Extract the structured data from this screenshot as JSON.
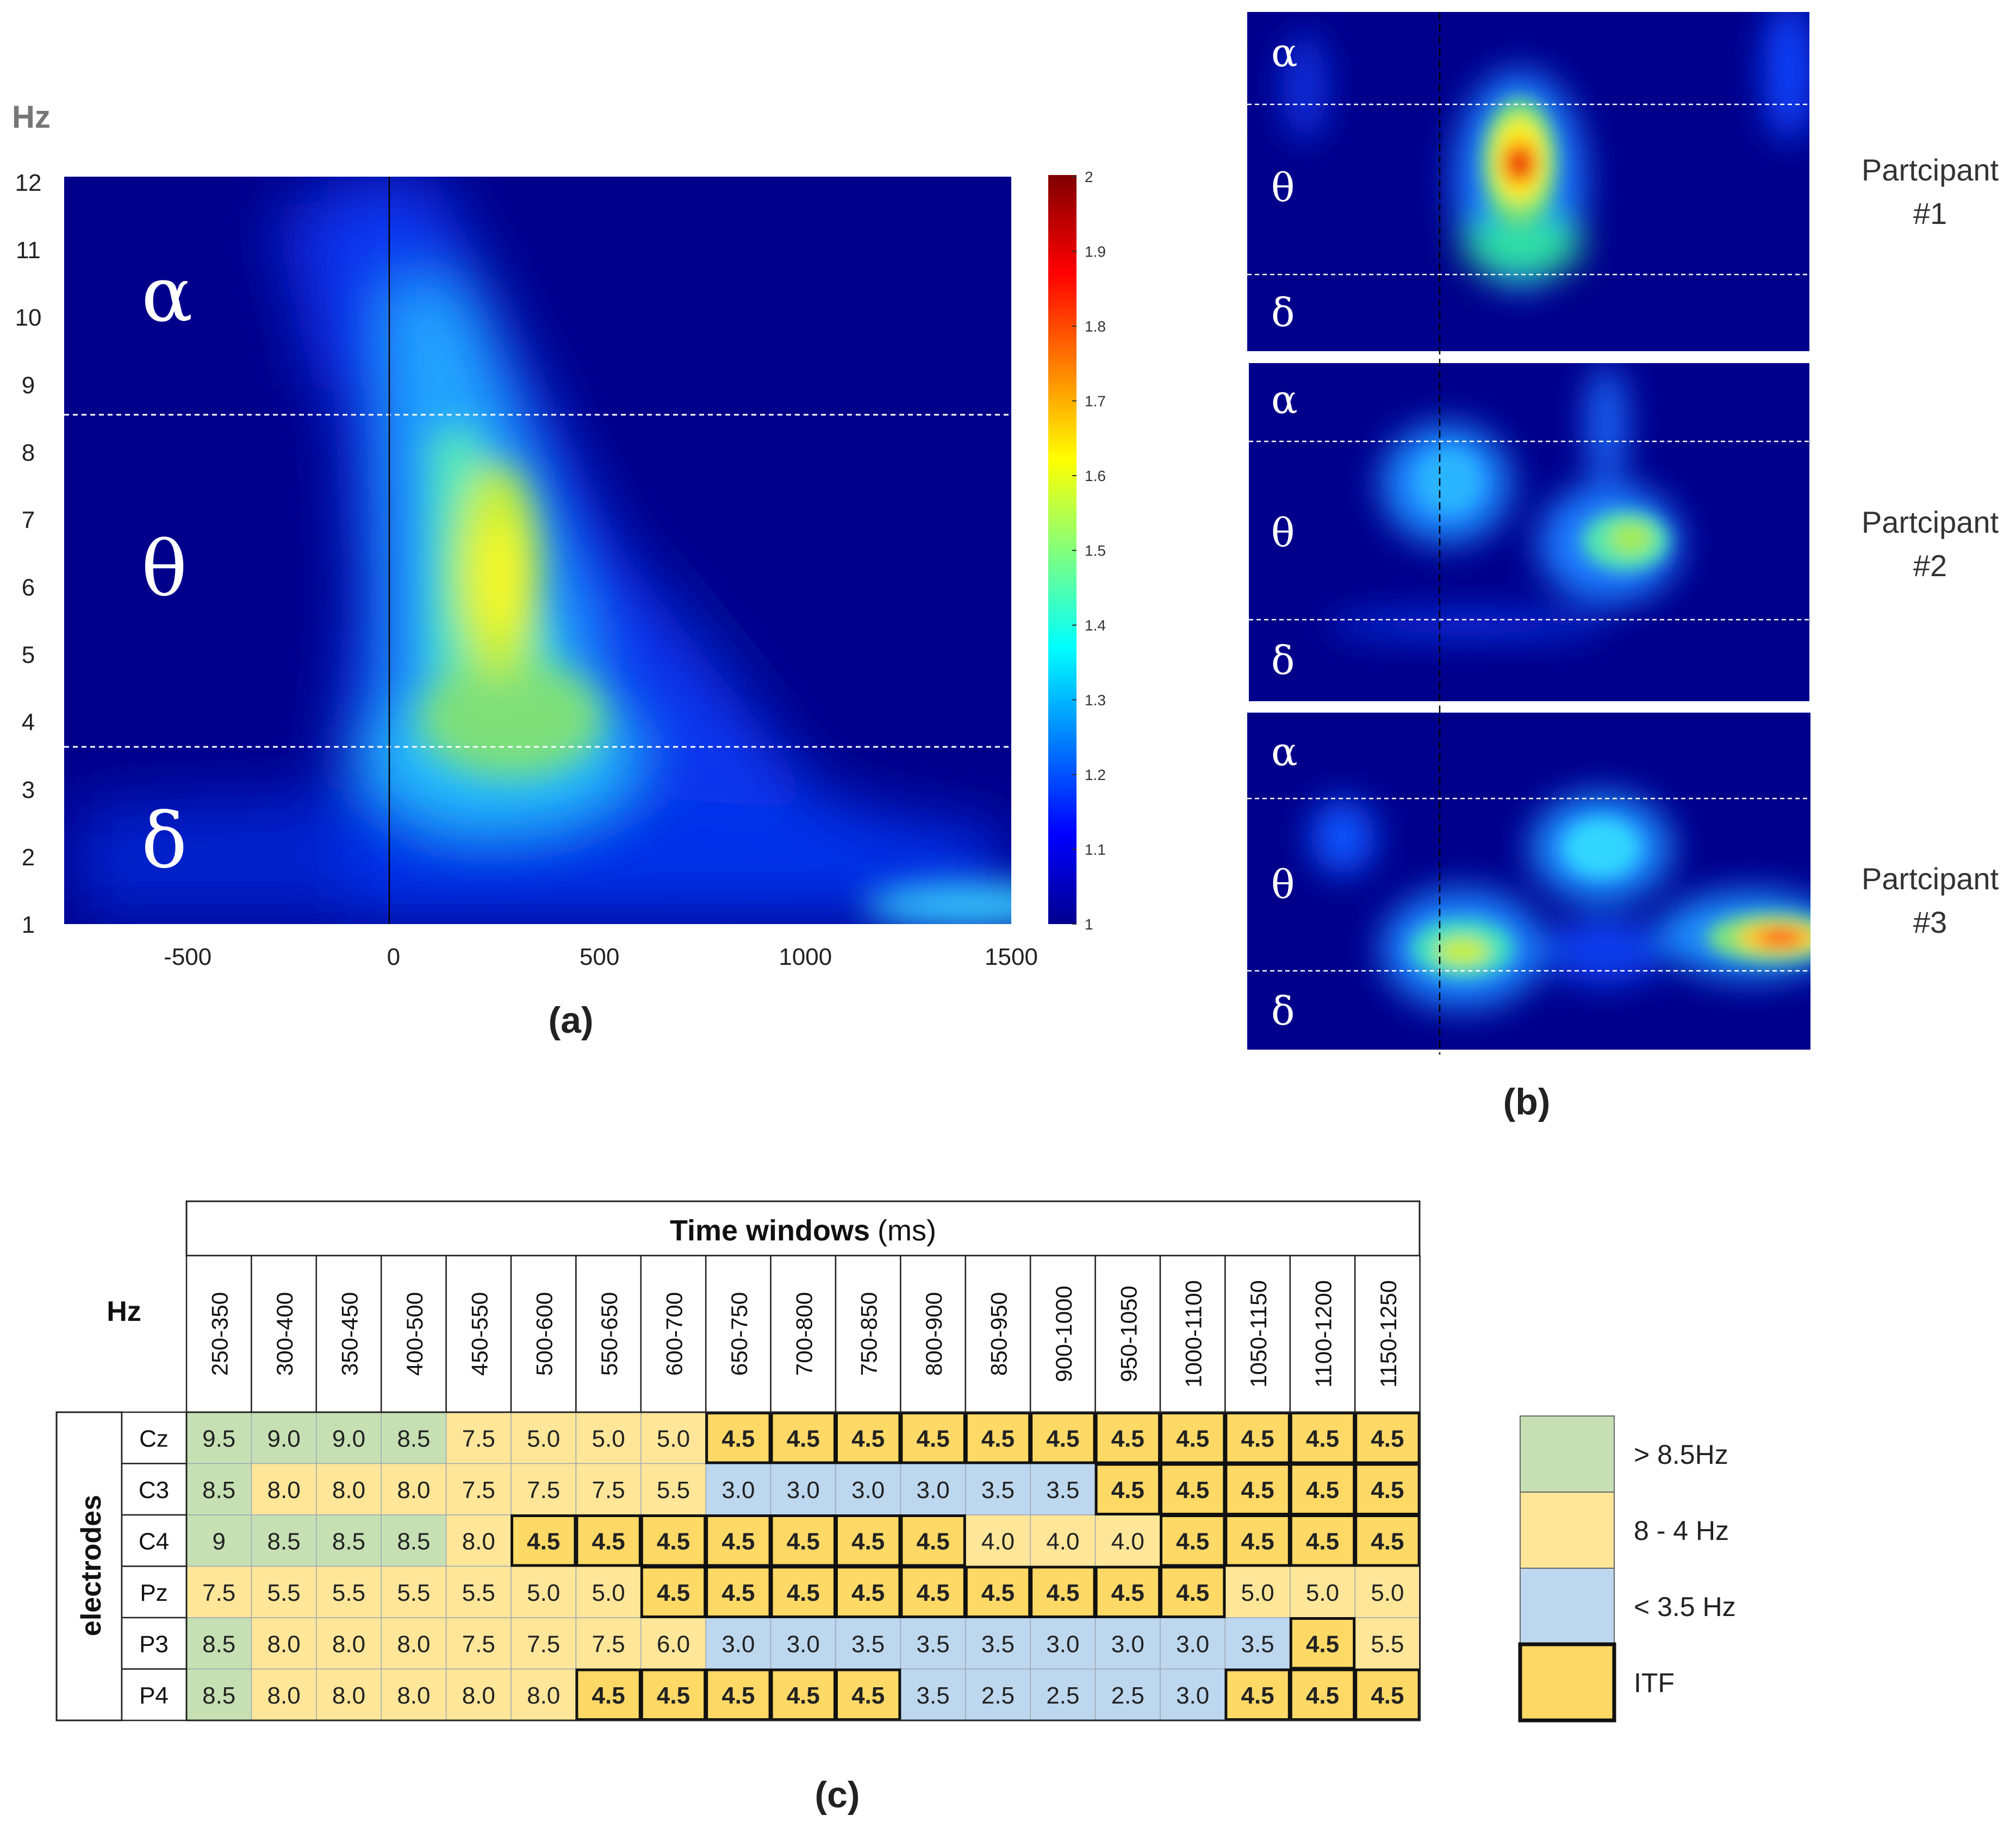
{
  "panel_a": {
    "label": "(a)",
    "y_unit": "Hz",
    "y_ticks": [
      "1",
      "2",
      "3",
      "4",
      "5",
      "6",
      "7",
      "8",
      "9",
      "10",
      "11",
      "12"
    ],
    "x_ticks": [
      "-500",
      "0",
      "500",
      "1000",
      "1500"
    ],
    "bands": [
      "α",
      "θ",
      "δ"
    ],
    "colorbar_ticks": [
      "1",
      "1.1",
      "1.2",
      "1.3",
      "1.4",
      "1.5",
      "1.6",
      "1.7",
      "1.8",
      "1.9",
      "2"
    ]
  },
  "panel_b": {
    "label": "(b)",
    "bands": [
      "α",
      "θ",
      "δ"
    ],
    "participants": [
      {
        "name": "Partcipant",
        "number": "#1"
      },
      {
        "name": "Partcipant",
        "number": "#2"
      },
      {
        "name": "Partcipant",
        "number": "#3"
      }
    ]
  },
  "panel_c": {
    "label": "(c)",
    "header_title": "Time windows",
    "header_unit": "(ms)",
    "row_axis_label": "Hz",
    "col_axis_label": "electrodes",
    "legend": [
      {
        "label": "> 8.5Hz",
        "color": "#c6e0b4"
      },
      {
        "label": "8 - 4 Hz",
        "color": "#ffe699"
      },
      {
        "label": "< 3.5 Hz",
        "color": "#bdd7ee"
      },
      {
        "label": "ITF",
        "color": "#ffd966"
      }
    ]
  },
  "chart_data": [
    {
      "type": "heatmap",
      "title": "(a)",
      "xlabel": "",
      "ylabel": "Hz",
      "xlim": [
        -800,
        1500
      ],
      "ylim": [
        1,
        12
      ],
      "x_ticks": [
        -500,
        0,
        500,
        1000,
        1500
      ],
      "y_ticks": [
        1,
        2,
        3,
        4,
        5,
        6,
        7,
        8,
        9,
        10,
        11,
        12
      ],
      "colorbar_range": [
        1,
        2
      ],
      "band_boundaries_hz": [
        3.5,
        8.5
      ],
      "bands": [
        "δ",
        "θ",
        "α"
      ],
      "onset_ms": 0,
      "peak": {
        "time_ms": 270,
        "freq_hz": 6,
        "value": 1.5
      }
    },
    {
      "type": "table",
      "title": "Time windows (ms)",
      "columns": [
        "250-350",
        "300-400",
        "350-450",
        "400-500",
        "450-550",
        "500-600",
        "550-650",
        "600-700",
        "650-750",
        "700-800",
        "750-850",
        "800-900",
        "850-950",
        "900-1000",
        "950-1050",
        "1000-1100",
        "1050-1150",
        "1100-1200",
        "1150-1250"
      ],
      "rows": [
        {
          "electrode": "Cz",
          "values": [
            "9.5",
            "9.0",
            "9.0",
            "8.5",
            "7.5",
            "5.0",
            "5.0",
            "5.0",
            "4.5",
            "4.5",
            "4.5",
            "4.5",
            "4.5",
            "4.5",
            "4.5",
            "4.5",
            "4.5",
            "4.5",
            "4.5"
          ],
          "itf": [
            8,
            9,
            10,
            11,
            12,
            13,
            14,
            15,
            16,
            17,
            18
          ]
        },
        {
          "electrode": "C3",
          "values": [
            "8.5",
            "8.0",
            "8.0",
            "8.0",
            "7.5",
            "7.5",
            "7.5",
            "5.5",
            "3.0",
            "3.0",
            "3.0",
            "3.0",
            "3.5",
            "3.5",
            "4.5",
            "4.5",
            "4.5",
            "4.5",
            "4.5"
          ],
          "itf": [
            14,
            15,
            16,
            17,
            18
          ]
        },
        {
          "electrode": "C4",
          "values": [
            "9",
            "8.5",
            "8.5",
            "8.5",
            "8.0",
            "4.5",
            "4.5",
            "4.5",
            "4.5",
            "4.5",
            "4.5",
            "4.5",
            "4.0",
            "4.0",
            "4.0",
            "4.5",
            "4.5",
            "4.5",
            "4.5"
          ],
          "itf": [
            5,
            6,
            7,
            8,
            9,
            10,
            11,
            15,
            16,
            17,
            18
          ]
        },
        {
          "electrode": "Pz",
          "values": [
            "7.5",
            "5.5",
            "5.5",
            "5.5",
            "5.5",
            "5.0",
            "5.0",
            "4.5",
            "4.5",
            "4.5",
            "4.5",
            "4.5",
            "4.5",
            "4.5",
            "4.5",
            "4.5",
            "5.0",
            "5.0",
            "5.0"
          ],
          "itf": [
            7,
            8,
            9,
            10,
            11,
            12,
            13,
            14,
            15
          ]
        },
        {
          "electrode": "P3",
          "values": [
            "8.5",
            "8.0",
            "8.0",
            "8.0",
            "7.5",
            "7.5",
            "7.5",
            "6.0",
            "3.0",
            "3.0",
            "3.5",
            "3.5",
            "3.5",
            "3.0",
            "3.0",
            "3.0",
            "3.5",
            "4.5",
            "5.5"
          ],
          "itf": [
            17
          ]
        },
        {
          "electrode": "P4",
          "values": [
            "8.5",
            "8.0",
            "8.0",
            "8.0",
            "8.0",
            "8.0",
            "4.5",
            "4.5",
            "4.5",
            "4.5",
            "4.5",
            "3.5",
            "2.5",
            "2.5",
            "2.5",
            "3.0",
            "4.5",
            "4.5",
            "4.5"
          ],
          "itf": [
            6,
            7,
            8,
            9,
            10,
            16,
            17,
            18
          ]
        }
      ]
    }
  ]
}
